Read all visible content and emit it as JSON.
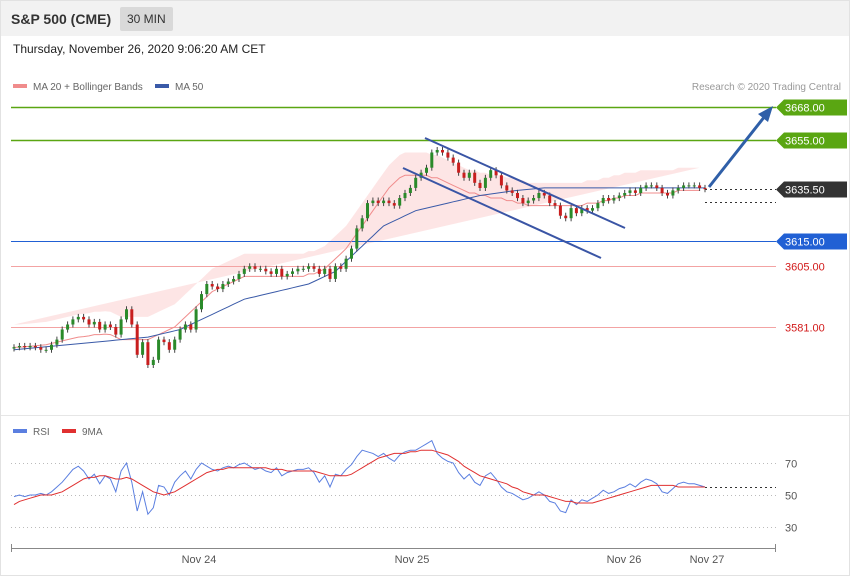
{
  "header": {
    "title": "S&P 500 (CME)",
    "timeframe": "30 MIN",
    "datetime": "Thursday, November 26, 2020 9:06:20 AM CET"
  },
  "legend": {
    "ma20_label": "MA 20 + Bollinger Bands",
    "ma50_label": "MA 50",
    "copyright": "Research © 2020 Trading Central",
    "rsi_label": "RSI",
    "ma9_label": "9MA"
  },
  "colors": {
    "resistance": "#5aa612",
    "support": "#2160d4",
    "pivot_minor": "#d21a1a",
    "price_tag": "#333333",
    "candle_up": "#2a8a2a",
    "candle_down": "#c81e1e",
    "bollinger_fill": "#fde0e0",
    "ma20": "#f08c8c",
    "ma50": "#3a5aa8",
    "channel": "#3a55a5",
    "projection_arrow": "#2f5fa8",
    "rsi": "#5b7fe0",
    "rsi_ma9": "#e03030"
  },
  "chart_data": [
    {
      "type": "candlestick",
      "title": "S&P 500 (CME)",
      "interval": "30 MIN",
      "x_ticks": [
        "Nov 24",
        "Nov 25",
        "Nov 26",
        "Nov 27"
      ],
      "ylim": [
        3570,
        3676
      ],
      "current_price": 3635.5,
      "levels": [
        {
          "label": "3668.00",
          "value": 3668.0,
          "kind": "resistance"
        },
        {
          "label": "3655.00",
          "value": 3655.0,
          "kind": "resistance"
        },
        {
          "label": "3635.50",
          "value": 3635.5,
          "kind": "last"
        },
        {
          "label": "3615.00",
          "value": 3615.0,
          "kind": "support"
        },
        {
          "label": "3605.00",
          "value": 3605.0,
          "kind": "pivot"
        },
        {
          "label": "3581.00",
          "value": 3581.0,
          "kind": "pivot"
        }
      ],
      "close": [
        3573,
        3573.5,
        3573,
        3573.5,
        3573,
        3572,
        3572,
        3574,
        3576,
        3580,
        3582,
        3584,
        3585,
        3584,
        3582,
        3583,
        3580,
        3582,
        3581,
        3578,
        3584,
        3588,
        3582,
        3570,
        3575,
        3566,
        3568,
        3576,
        3575,
        3572,
        3576,
        3580,
        3582,
        3580,
        3588,
        3594,
        3598,
        3597,
        3596,
        3598,
        3599,
        3600,
        3602,
        3604,
        3605,
        3604,
        3604,
        3603,
        3602,
        3604,
        3601,
        3602,
        3603,
        3604,
        3604,
        3605,
        3604,
        3602,
        3604,
        3600,
        3605,
        3604,
        3608,
        3612,
        3620,
        3624,
        3630,
        3631,
        3630,
        3631,
        3630,
        3629,
        3632,
        3634,
        3636,
        3640,
        3642,
        3644,
        3650,
        3651,
        3650,
        3648,
        3646,
        3642,
        3640,
        3642,
        3638,
        3636,
        3640,
        3643,
        3641,
        3637,
        3635,
        3634,
        3632,
        3630,
        3631,
        3632,
        3634,
        3633,
        3630,
        3629,
        3625,
        3624,
        3628,
        3626,
        3628,
        3627,
        3628,
        3630,
        3632,
        3631,
        3632,
        3633,
        3634,
        3635,
        3634,
        3636,
        3637,
        3637,
        3636,
        3634,
        3633,
        3635,
        3636,
        3637,
        3637,
        3637,
        3636,
        3635.5
      ],
      "ma20": [
        3573,
        3573,
        3573.2,
        3573.4,
        3573.6,
        3573.8,
        3574,
        3574.5,
        3575,
        3575.5,
        3576,
        3576.5,
        3577,
        3577.2,
        3577.5,
        3578,
        3578,
        3578.2,
        3578,
        3577,
        3576,
        3576,
        3576,
        3576,
        3576,
        3576,
        3577,
        3578,
        3579,
        3580,
        3581,
        3583,
        3585,
        3587,
        3589,
        3591,
        3593,
        3595,
        3596,
        3597,
        3598,
        3599,
        3600,
        3601,
        3601,
        3601,
        3601,
        3601,
        3601,
        3601,
        3601,
        3601,
        3601,
        3601,
        3601,
        3602,
        3602,
        3603,
        3604,
        3606,
        3608,
        3610,
        3612,
        3615,
        3618,
        3621,
        3624,
        3627,
        3630,
        3633,
        3636,
        3638,
        3640,
        3641,
        3641,
        3641,
        3641,
        3641,
        3640,
        3640,
        3639,
        3638,
        3637,
        3636,
        3635,
        3634,
        3634,
        3633,
        3633,
        3632,
        3632,
        3632,
        3631,
        3631,
        3630,
        3630,
        3629,
        3629,
        3629,
        3629,
        3629,
        3629,
        3629,
        3629,
        3629,
        3629,
        3629,
        3630,
        3630,
        3630,
        3631,
        3631,
        3632,
        3632,
        3633,
        3633,
        3633,
        3634,
        3634,
        3634,
        3634,
        3634,
        3634,
        3634,
        3635,
        3635,
        3635,
        3635,
        3635
      ],
      "ma50": [
        3572,
        3572.2,
        3572.4,
        3572.6,
        3572.8,
        3573,
        3573.2,
        3573.4,
        3573.6,
        3573.8,
        3574,
        3574.2,
        3574.4,
        3574.6,
        3574.8,
        3575,
        3575.2,
        3575.4,
        3575.6,
        3575.8,
        3576,
        3576.2,
        3576.4,
        3576.6,
        3576.8,
        3577,
        3577.5,
        3578,
        3578.5,
        3579,
        3579.5,
        3580,
        3581,
        3582,
        3583,
        3584,
        3585,
        3586,
        3587,
        3588,
        3589,
        3590,
        3591,
        3592,
        3592.5,
        3593,
        3593.5,
        3594,
        3594.5,
        3595,
        3595.5,
        3596,
        3596.5,
        3597,
        3597.5,
        3598,
        3599,
        3600,
        3601,
        3602,
        3603,
        3605,
        3607,
        3609,
        3611,
        3613,
        3615,
        3617,
        3619,
        3621,
        3622,
        3623,
        3624,
        3625,
        3626,
        3627,
        3627.5,
        3628,
        3628.5,
        3629,
        3629.5,
        3630,
        3630.5,
        3631,
        3631.5,
        3632,
        3632.5,
        3633,
        3633.3,
        3633.6,
        3633.9,
        3634.2,
        3634.5,
        3634.8,
        3635,
        3635.2,
        3635.4,
        3635.6,
        3635.8,
        3636,
        3636,
        3636,
        3636,
        3636,
        3636,
        3636,
        3636,
        3636,
        3636,
        3636,
        3636,
        3636,
        3636,
        3636,
        3636,
        3636,
        3636,
        3636,
        3636,
        3636,
        3636,
        3636,
        3636,
        3636,
        3636,
        3636,
        3636,
        3636,
        3636,
        3636
      ]
    },
    {
      "type": "line",
      "title": "RSI",
      "ylim": [
        20,
        85
      ],
      "y_ticks": [
        30,
        50,
        70
      ],
      "series": [
        {
          "name": "RSI",
          "values": [
            49,
            50,
            49,
            50,
            50,
            51,
            50,
            52,
            55,
            58,
            62,
            66,
            68,
            65,
            60,
            63,
            57,
            62,
            60,
            52,
            65,
            70,
            58,
            40,
            52,
            38,
            42,
            56,
            55,
            50,
            58,
            62,
            65,
            60,
            66,
            70,
            68,
            66,
            65,
            67,
            68,
            67,
            69,
            70,
            68,
            66,
            67,
            65,
            64,
            67,
            62,
            64,
            65,
            66,
            66,
            67,
            64,
            58,
            62,
            55,
            63,
            62,
            66,
            69,
            74,
            78,
            77,
            76,
            74,
            76,
            73,
            71,
            75,
            77,
            78,
            78,
            80,
            82,
            84,
            76,
            73,
            71,
            70,
            64,
            60,
            63,
            58,
            56,
            62,
            64,
            60,
            55,
            52,
            51,
            49,
            47,
            48,
            50,
            52,
            50,
            46,
            45,
            40,
            39,
            47,
            44,
            47,
            46,
            48,
            50,
            53,
            51,
            52,
            54,
            55,
            57,
            55,
            58,
            60,
            59,
            57,
            52,
            51,
            54,
            57,
            58,
            57,
            57,
            56,
            55
          ]
        },
        {
          "name": "9MA",
          "values": [
            44,
            46,
            47,
            48,
            49,
            50,
            50,
            50,
            51,
            52,
            54,
            56,
            58,
            60,
            61,
            61,
            62,
            62,
            61,
            60,
            60,
            61,
            60,
            58,
            56,
            54,
            52,
            51,
            50,
            51,
            52,
            54,
            56,
            58,
            60,
            62,
            64,
            65,
            66,
            66,
            67,
            67,
            67,
            67,
            67,
            67,
            67,
            67,
            66,
            66,
            66,
            65,
            65,
            65,
            65,
            65,
            65,
            64,
            63,
            62,
            62,
            62,
            62,
            63,
            65,
            67,
            69,
            71,
            73,
            74,
            75,
            76,
            76,
            76,
            77,
            77,
            78,
            78,
            78,
            77,
            76,
            75,
            73,
            71,
            68,
            66,
            64,
            62,
            61,
            60,
            59,
            58,
            57,
            55,
            54,
            52,
            51,
            50,
            50,
            50,
            49,
            48,
            47,
            46,
            46,
            45,
            45,
            45,
            45,
            46,
            47,
            48,
            49,
            50,
            51,
            52,
            53,
            54,
            55,
            56,
            56,
            56,
            56,
            56,
            55,
            55,
            55,
            55,
            55,
            55
          ]
        }
      ]
    }
  ]
}
